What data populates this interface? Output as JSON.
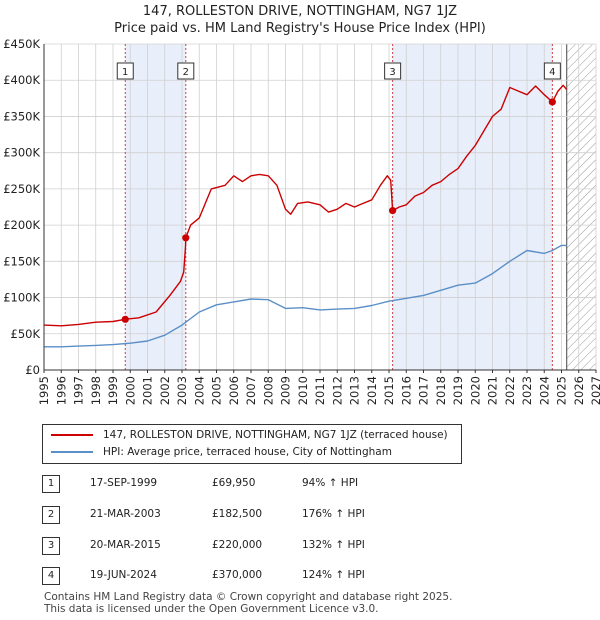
{
  "header": {
    "title": "147, ROLLESTON DRIVE, NOTTINGHAM, NG7 1JZ",
    "subtitle": "Price paid vs. HM Land Registry's House Price Index (HPI)"
  },
  "legend": {
    "red_label": "147, ROLLESTON DRIVE, NOTTINGHAM, NG7 1JZ (terraced house)",
    "blue_label": "HPI: Average price, terraced house, City of Nottingham"
  },
  "sales": [
    {
      "num": "1",
      "date": "17-SEP-1999",
      "price": "£69,950",
      "hpi": "94% ↑ HPI"
    },
    {
      "num": "2",
      "date": "21-MAR-2003",
      "price": "£182,500",
      "hpi": "176% ↑ HPI"
    },
    {
      "num": "3",
      "date": "20-MAR-2015",
      "price": "£220,000",
      "hpi": "132% ↑ HPI"
    },
    {
      "num": "4",
      "date": "19-JUN-2024",
      "price": "£370,000",
      "hpi": "124% ↑ HPI"
    }
  ],
  "footer": {
    "line1": "Contains HM Land Registry data © Crown copyright and database right 2025.",
    "line2": "This data is licensed under the Open Government Licence v3.0."
  },
  "colors": {
    "red_series": "#cc0000",
    "blue_series": "#5b8fc7",
    "shade": "#e8eefa",
    "grid": "#d0d0d0",
    "marker_line": "#d04040"
  },
  "chart_data": {
    "type": "line",
    "title": "147, ROLLESTON DRIVE, NOTTINGHAM, NG7 1JZ",
    "subtitle": "Price paid vs. HM Land Registry's House Price Index (HPI)",
    "xlabel": "",
    "ylabel": "",
    "xlim": [
      1995,
      2027
    ],
    "ylim": [
      0,
      450000
    ],
    "grid": true,
    "legend_position": "bottom",
    "x_ticks": [
      "1995",
      "1996",
      "1997",
      "1998",
      "1999",
      "2000",
      "2001",
      "2002",
      "2003",
      "2004",
      "2005",
      "2006",
      "2007",
      "2008",
      "2009",
      "2010",
      "2011",
      "2012",
      "2013",
      "2014",
      "2015",
      "2016",
      "2017",
      "2018",
      "2019",
      "2020",
      "2021",
      "2022",
      "2023",
      "2024",
      "2025",
      "2026",
      "2027"
    ],
    "y_ticks": [
      {
        "value": 0,
        "label": "£0"
      },
      {
        "value": 50000,
        "label": "£50K"
      },
      {
        "value": 100000,
        "label": "£100K"
      },
      {
        "value": 150000,
        "label": "£150K"
      },
      {
        "value": 200000,
        "label": "£200K"
      },
      {
        "value": 250000,
        "label": "£250K"
      },
      {
        "value": 300000,
        "label": "£300K"
      },
      {
        "value": 350000,
        "label": "£350K"
      },
      {
        "value": 400000,
        "label": "£400K"
      },
      {
        "value": 450000,
        "label": "£450K"
      }
    ],
    "shaded_ranges": [
      [
        1999.71,
        2003.22
      ],
      [
        2015.21,
        2024.47
      ]
    ],
    "hatched_from": 2025.3,
    "series": [
      {
        "name": "147, ROLLESTON DRIVE, NOTTINGHAM, NG7 1JZ (terraced house)",
        "color": "#cc0000",
        "points": [
          [
            1995,
            62000
          ],
          [
            1996,
            61000
          ],
          [
            1997,
            63000
          ],
          [
            1998,
            66000
          ],
          [
            1999,
            67000
          ],
          [
            1999.71,
            69950
          ],
          [
            2000.5,
            72000
          ],
          [
            2001.5,
            80000
          ],
          [
            2002.3,
            103000
          ],
          [
            2002.9,
            122000
          ],
          [
            2003.1,
            135000
          ],
          [
            2003.2,
            170000
          ],
          [
            2003.22,
            182500
          ],
          [
            2003.5,
            200000
          ],
          [
            2004,
            210000
          ],
          [
            2004.7,
            250000
          ],
          [
            2005.5,
            255000
          ],
          [
            2006,
            268000
          ],
          [
            2006.5,
            260000
          ],
          [
            2007,
            268000
          ],
          [
            2007.5,
            270000
          ],
          [
            2008,
            268000
          ],
          [
            2008.5,
            255000
          ],
          [
            2009,
            222000
          ],
          [
            2009.3,
            215000
          ],
          [
            2009.7,
            230000
          ],
          [
            2010.3,
            232000
          ],
          [
            2011,
            228000
          ],
          [
            2011.5,
            218000
          ],
          [
            2012,
            222000
          ],
          [
            2012.5,
            230000
          ],
          [
            2013,
            225000
          ],
          [
            2013.5,
            230000
          ],
          [
            2014,
            235000
          ],
          [
            2014.5,
            255000
          ],
          [
            2014.9,
            268000
          ],
          [
            2015.1,
            262000
          ],
          [
            2015.21,
            220000
          ],
          [
            2015.6,
            225000
          ],
          [
            2016,
            228000
          ],
          [
            2016.5,
            240000
          ],
          [
            2017,
            245000
          ],
          [
            2017.5,
            255000
          ],
          [
            2018,
            260000
          ],
          [
            2018.5,
            270000
          ],
          [
            2019,
            278000
          ],
          [
            2019.5,
            295000
          ],
          [
            2020,
            310000
          ],
          [
            2020.5,
            330000
          ],
          [
            2021,
            350000
          ],
          [
            2021.5,
            360000
          ],
          [
            2022,
            390000
          ],
          [
            2022.5,
            385000
          ],
          [
            2023,
            380000
          ],
          [
            2023.5,
            392000
          ],
          [
            2024,
            380000
          ],
          [
            2024.47,
            370000
          ],
          [
            2024.8,
            385000
          ],
          [
            2025.1,
            393000
          ],
          [
            2025.3,
            387000
          ]
        ]
      },
      {
        "name": "HPI: Average price, terraced house, City of Nottingham",
        "color": "#5b8fc7",
        "points": [
          [
            1995,
            32000
          ],
          [
            1996,
            32000
          ],
          [
            1997,
            33000
          ],
          [
            1998,
            34000
          ],
          [
            1999,
            35000
          ],
          [
            2000,
            37000
          ],
          [
            2001,
            40000
          ],
          [
            2002,
            48000
          ],
          [
            2003,
            62000
          ],
          [
            2004,
            80000
          ],
          [
            2005,
            90000
          ],
          [
            2006,
            94000
          ],
          [
            2007,
            98000
          ],
          [
            2008,
            97000
          ],
          [
            2009,
            85000
          ],
          [
            2010,
            86000
          ],
          [
            2011,
            83000
          ],
          [
            2012,
            84000
          ],
          [
            2013,
            85000
          ],
          [
            2014,
            89000
          ],
          [
            2015,
            95000
          ],
          [
            2016,
            99000
          ],
          [
            2017,
            103000
          ],
          [
            2018,
            110000
          ],
          [
            2019,
            117000
          ],
          [
            2020,
            120000
          ],
          [
            2021,
            133000
          ],
          [
            2022,
            150000
          ],
          [
            2023,
            165000
          ],
          [
            2024,
            161000
          ],
          [
            2024.47,
            165000
          ],
          [
            2025,
            172000
          ],
          [
            2025.3,
            172000
          ]
        ]
      }
    ],
    "sale_markers": [
      {
        "num": "1",
        "x": 1999.71,
        "y": 69950
      },
      {
        "num": "2",
        "x": 2003.22,
        "y": 182500
      },
      {
        "num": "3",
        "x": 2015.21,
        "y": 220000
      },
      {
        "num": "4",
        "x": 2024.47,
        "y": 370000
      }
    ]
  }
}
